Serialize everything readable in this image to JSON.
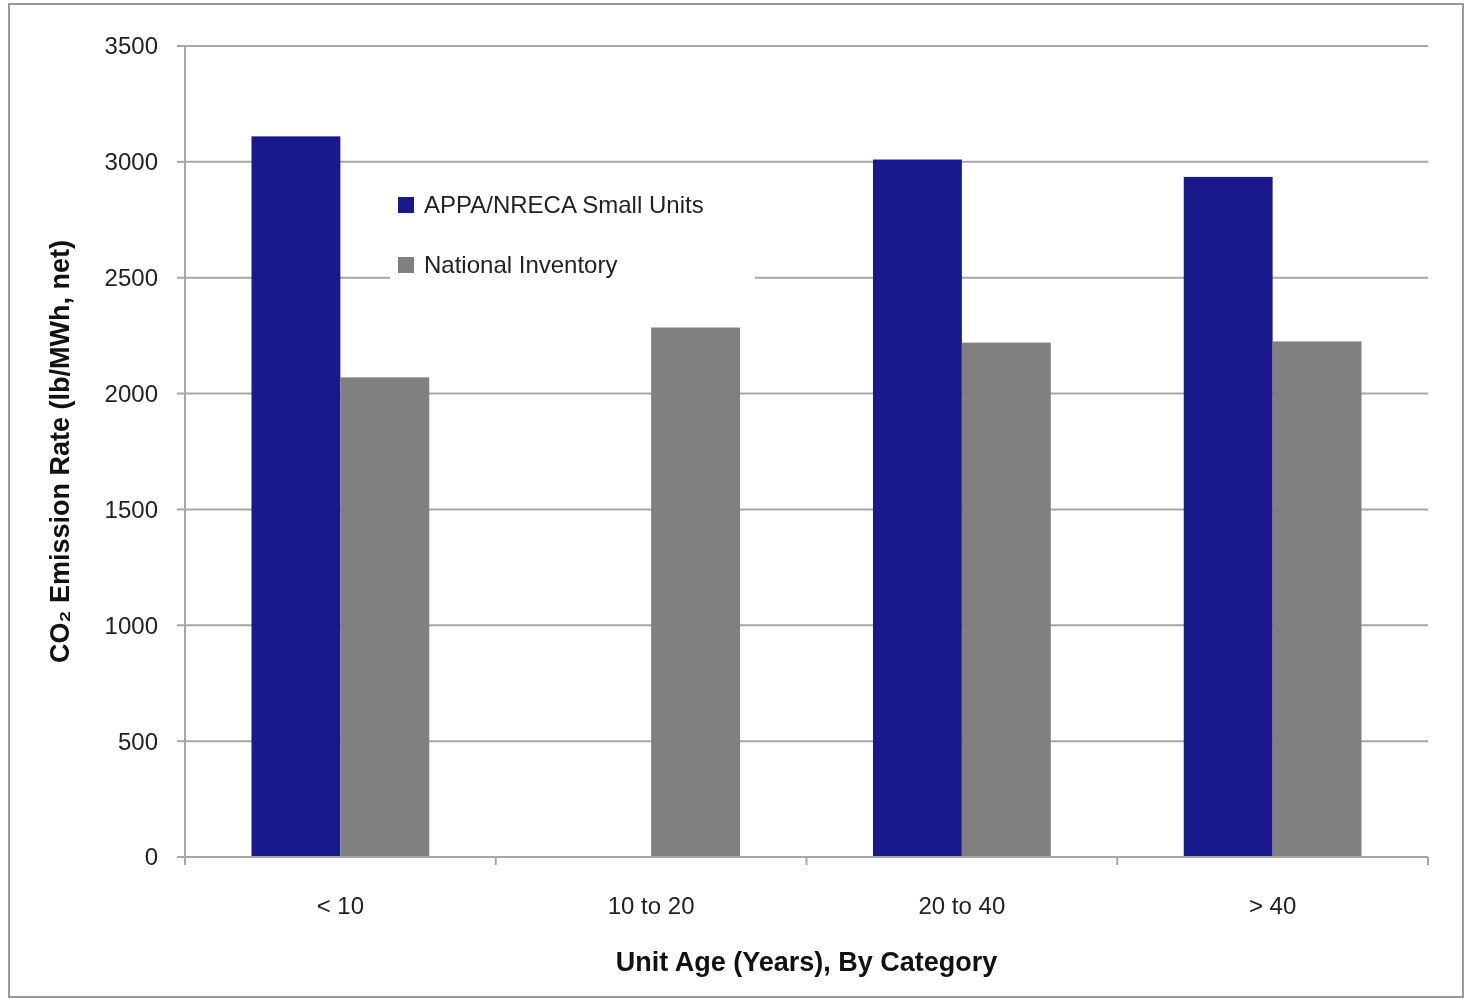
{
  "chart_data": {
    "type": "bar",
    "xlabel": "Unit Age (Years), By Category",
    "ylabel": "CO₂ Emission Rate (lb/MWh, net)",
    "categories": [
      "< 10",
      "10 to 20",
      "20 to 40",
      "> 40"
    ],
    "series": [
      {
        "name": "APPA/NRECA Small Units",
        "color": "#19198c",
        "values": [
          3110,
          null,
          3010,
          2935
        ]
      },
      {
        "name": "National Inventory",
        "color": "#808080",
        "values": [
          2070,
          2285,
          2220,
          2225
        ]
      }
    ],
    "ylim": [
      0,
      3500
    ],
    "yticks": [
      0,
      500,
      1000,
      1500,
      2000,
      2500,
      3000,
      3500
    ],
    "grid": "y",
    "legend": "top left"
  }
}
